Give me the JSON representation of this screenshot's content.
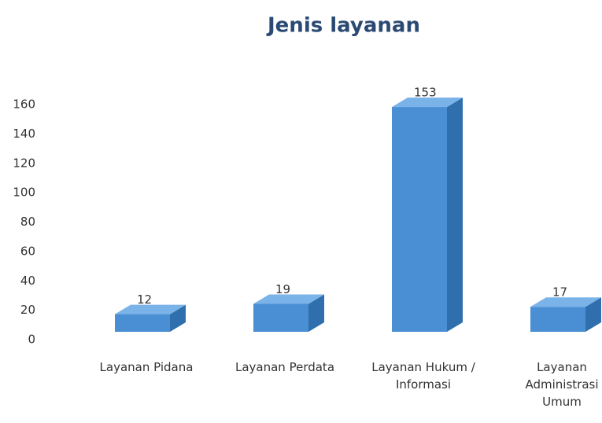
{
  "chart_data": {
    "type": "bar",
    "title": "Jenis layanan",
    "categories": [
      "Layanan Pidana",
      "Layanan Perdata",
      "Layanan Hukum / Informasi",
      "Layanan Administrasi Umum"
    ],
    "values": [
      12,
      19,
      153,
      17
    ],
    "color": "#4a8fd4",
    "ylim": [
      0,
      160
    ],
    "yticks": [
      0,
      20,
      40,
      60,
      80,
      100,
      120,
      140,
      160
    ],
    "grid": false
  }
}
